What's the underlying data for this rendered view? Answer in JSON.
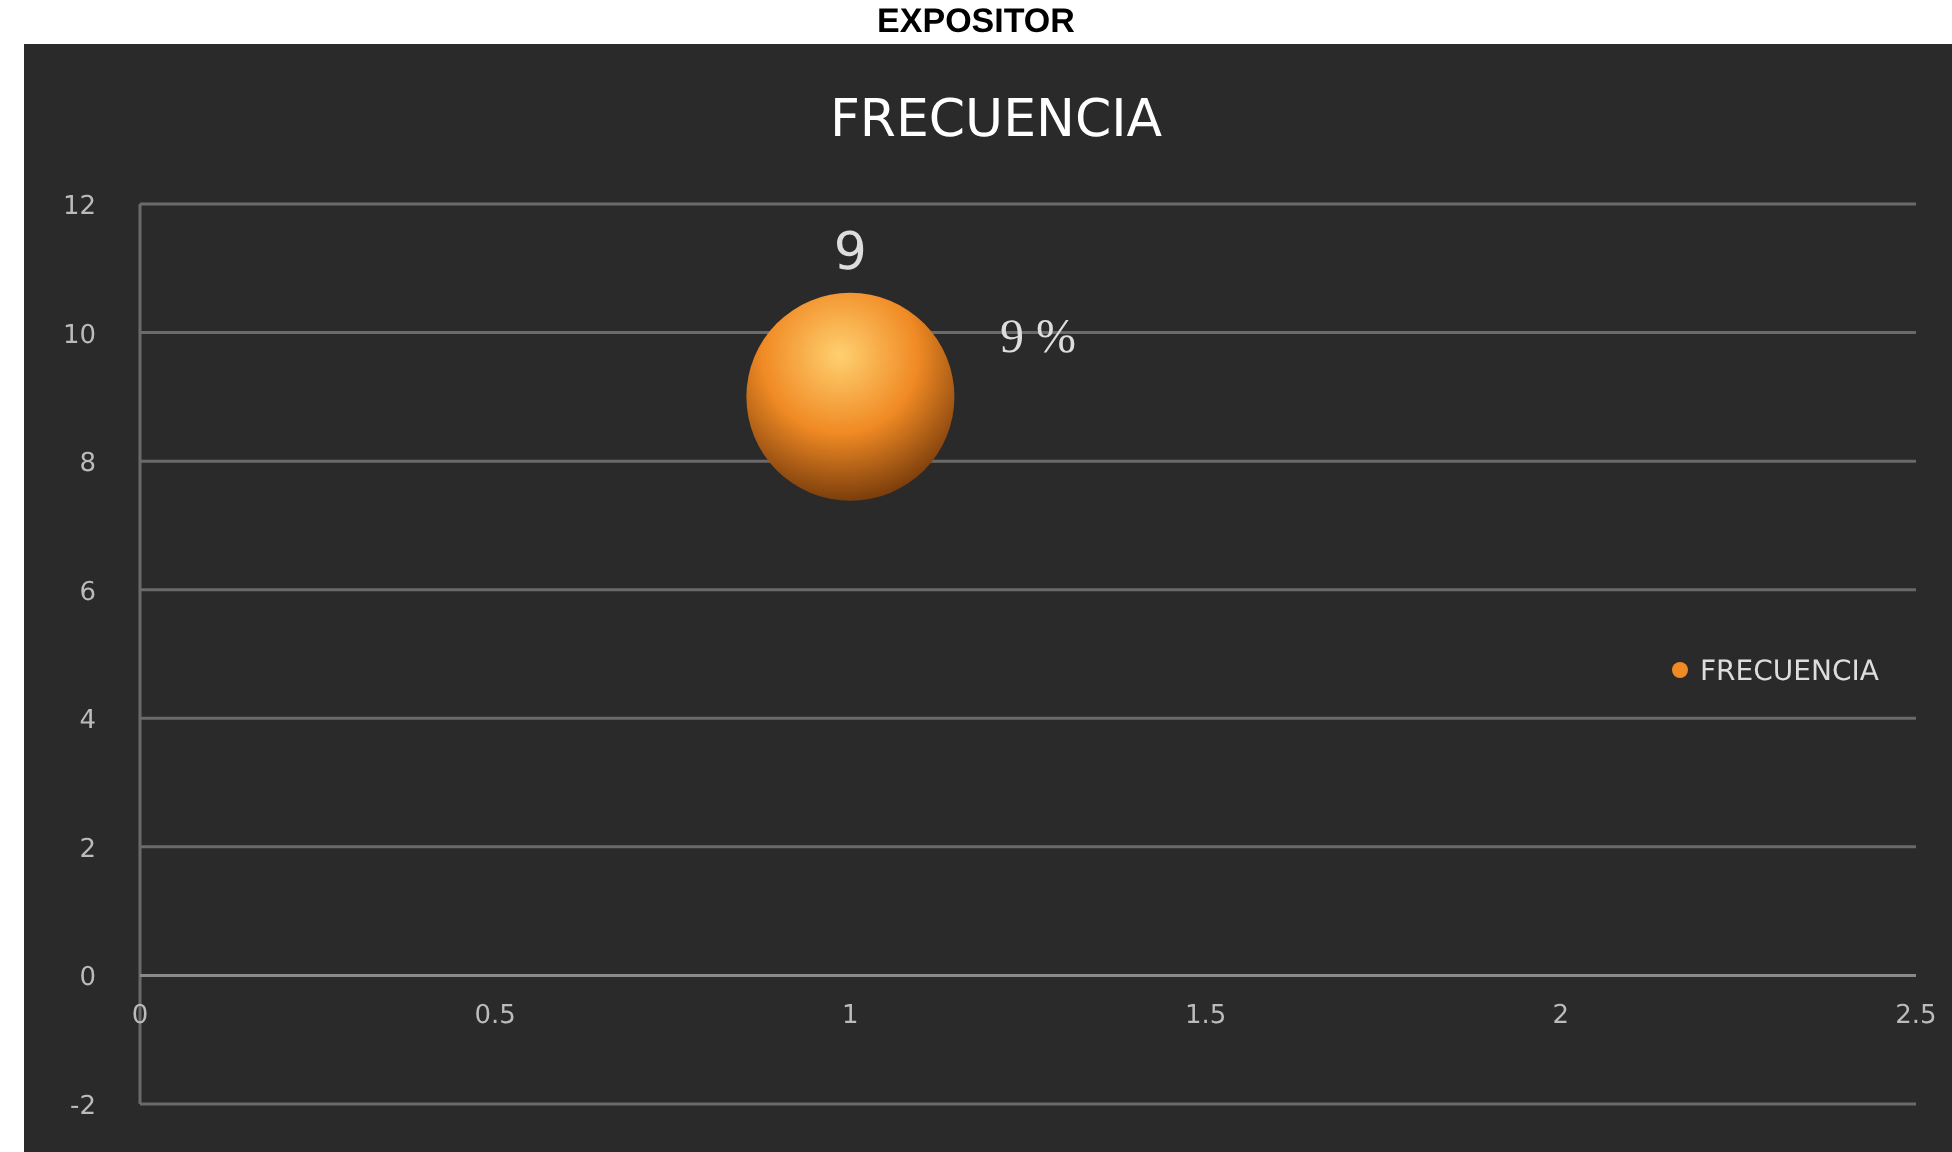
{
  "chart_data": {
    "type": "bubble",
    "title": "EXPOSITOR",
    "subtitle": "FRECUENCIA",
    "x": [
      1
    ],
    "series": [
      {
        "name": "FRECUENCIA",
        "color": "#f08a24",
        "values": [
          9
        ],
        "sizes": [
          1
        ]
      }
    ],
    "data_labels": true,
    "annotations": [
      "9 %"
    ],
    "xlim": [
      0,
      2.5
    ],
    "xticks": [
      0,
      0.5,
      1,
      1.5,
      2,
      2.5
    ],
    "ylim": [
      -2,
      12
    ],
    "yticks": [
      -2,
      0,
      2,
      4,
      6,
      8,
      10,
      12
    ],
    "grid": "y",
    "legend": "right"
  }
}
